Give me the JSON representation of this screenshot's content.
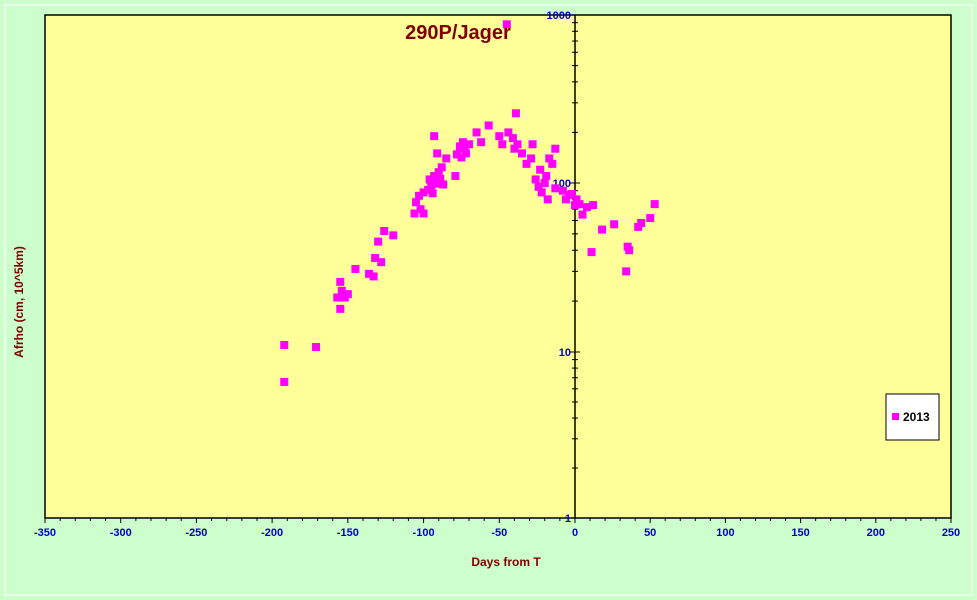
{
  "chart_data": {
    "type": "scatter",
    "title": "290P/Jager",
    "xlabel": "Days from T",
    "ylabel": "Afrho (cm, 10^5km)",
    "xlim": [
      -350,
      250
    ],
    "ylim": [
      1,
      1000
    ],
    "yscale": "log",
    "x_ticks": [
      -350,
      -300,
      -250,
      -200,
      -150,
      -100,
      -50,
      0,
      50,
      100,
      150,
      200,
      250
    ],
    "y_ticks": [
      1,
      10,
      100,
      1000
    ],
    "grid": false,
    "legend_position": "right",
    "colors": {
      "plot_bg": "#ffff99",
      "page_bg": "#ccffcc",
      "marker": "#ff00ff",
      "tick_text": "#0000cc",
      "title_text": "#800000"
    },
    "series": [
      {
        "name": "2013",
        "points": [
          [
            -45,
            880
          ],
          [
            -192,
            11
          ],
          [
            -192,
            6.6
          ],
          [
            -171,
            10.7
          ],
          [
            -157,
            21
          ],
          [
            -155,
            26
          ],
          [
            -155,
            18
          ],
          [
            -154,
            23
          ],
          [
            -152,
            21
          ],
          [
            -150,
            22
          ],
          [
            -145,
            31
          ],
          [
            -136,
            29
          ],
          [
            -133,
            28
          ],
          [
            -132,
            36
          ],
          [
            -130,
            45
          ],
          [
            -128,
            34
          ],
          [
            -126,
            52
          ],
          [
            -120,
            49
          ],
          [
            -106,
            66
          ],
          [
            -105,
            77
          ],
          [
            -103,
            84
          ],
          [
            -102,
            70
          ],
          [
            -100,
            66
          ],
          [
            -100,
            88
          ],
          [
            -97,
            91
          ],
          [
            -96,
            105
          ],
          [
            -95,
            97
          ],
          [
            -94,
            87
          ],
          [
            -93,
            110
          ],
          [
            -92,
            99
          ],
          [
            -91,
            150
          ],
          [
            -90,
            116
          ],
          [
            -89,
            106
          ],
          [
            -88,
            124
          ],
          [
            -87,
            98
          ],
          [
            -85,
            140
          ],
          [
            -93,
            190
          ],
          [
            -79,
            110
          ],
          [
            -78,
            148
          ],
          [
            -76,
            165
          ],
          [
            -75,
            142
          ],
          [
            -74,
            175
          ],
          [
            -73,
            160
          ],
          [
            -72,
            150
          ],
          [
            -70,
            170
          ],
          [
            -65,
            200
          ],
          [
            -62,
            175
          ],
          [
            -57,
            220
          ],
          [
            -50,
            190
          ],
          [
            -48,
            170
          ],
          [
            -44,
            200
          ],
          [
            -41,
            185
          ],
          [
            -40,
            160
          ],
          [
            -39,
            260
          ],
          [
            -38,
            170
          ],
          [
            -35,
            150
          ],
          [
            -32,
            130
          ],
          [
            -29,
            140
          ],
          [
            -28,
            170
          ],
          [
            -26,
            105
          ],
          [
            -24,
            95
          ],
          [
            -23,
            120
          ],
          [
            -22,
            88
          ],
          [
            -20,
            100
          ],
          [
            -19,
            110
          ],
          [
            -18,
            80
          ],
          [
            -17,
            140
          ],
          [
            -15,
            130
          ],
          [
            -13,
            160
          ],
          [
            -13,
            93
          ],
          [
            -8,
            90
          ],
          [
            -6,
            80
          ],
          [
            -4,
            85
          ],
          [
            -2,
            86
          ],
          [
            0,
            74
          ],
          [
            1,
            80
          ],
          [
            3,
            75
          ],
          [
            5,
            65
          ],
          [
            8,
            72
          ],
          [
            11,
            39
          ],
          [
            12,
            74
          ],
          [
            18,
            53
          ],
          [
            26,
            57
          ],
          [
            34,
            30
          ],
          [
            35,
            42
          ],
          [
            36,
            40
          ],
          [
            42,
            55
          ],
          [
            44,
            58
          ],
          [
            50,
            62
          ],
          [
            53,
            75
          ]
        ]
      }
    ]
  }
}
